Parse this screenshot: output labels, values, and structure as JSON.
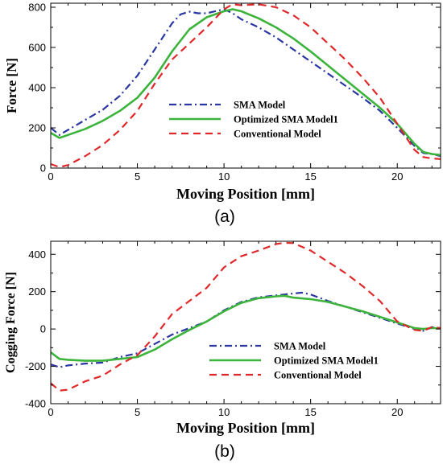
{
  "chart_data": [
    {
      "type": "line",
      "caption": "(a)",
      "xlabel": "Moving Position [mm]",
      "ylabel": "Force [N]",
      "xlim": [
        0,
        22.5
      ],
      "ylim": [
        0,
        820
      ],
      "xticks": [
        0,
        5,
        10,
        15,
        20
      ],
      "yticks": [
        0,
        200,
        400,
        600,
        800
      ],
      "grid": false,
      "legend_position": "center-right",
      "series": [
        {
          "name": "SMA Model",
          "color": "#2a37a0",
          "style": "dashdot",
          "x": [
            0,
            0.5,
            1,
            2,
            3,
            4,
            5,
            6,
            7,
            7.5,
            8,
            8.5,
            9,
            10,
            10.5,
            11,
            12,
            13,
            14,
            15,
            16,
            17,
            18,
            19,
            20,
            21,
            21.5,
            22,
            22.5
          ],
          "y": [
            200,
            165,
            190,
            240,
            290,
            360,
            460,
            590,
            720,
            765,
            778,
            770,
            770,
            790,
            770,
            740,
            700,
            650,
            590,
            530,
            470,
            410,
            350,
            285,
            200,
            110,
            75,
            70,
            60
          ]
        },
        {
          "name": "Optimized SMA Model1",
          "color": "#3cb43c",
          "style": "solid",
          "x": [
            0,
            0.5,
            1,
            2,
            3,
            4,
            5,
            6,
            7,
            8,
            9,
            10,
            10.5,
            11,
            12,
            13,
            14,
            15,
            16,
            17,
            18,
            19,
            20,
            21,
            21.5,
            22,
            22.5
          ],
          "y": [
            175,
            150,
            165,
            195,
            235,
            285,
            350,
            450,
            580,
            690,
            750,
            780,
            790,
            780,
            745,
            700,
            645,
            580,
            510,
            440,
            370,
            300,
            220,
            120,
            80,
            70,
            65
          ]
        },
        {
          "name": "Conventional Model",
          "color": "#e0282a",
          "style": "dashed",
          "x": [
            0,
            0.5,
            1,
            2,
            3,
            4,
            5,
            6,
            7,
            8,
            9,
            10,
            10.5,
            11,
            12,
            13,
            14,
            15,
            16,
            17,
            18,
            19,
            20,
            21,
            21.5,
            22,
            22.5
          ],
          "y": [
            20,
            5,
            15,
            60,
            115,
            190,
            285,
            420,
            540,
            620,
            700,
            790,
            815,
            810,
            815,
            800,
            760,
            700,
            620,
            540,
            450,
            350,
            220,
            90,
            55,
            48,
            45
          ]
        }
      ]
    },
    {
      "type": "line",
      "caption": "(b)",
      "xlabel": "Moving Position [mm]",
      "ylabel": "Cogging Force [N]",
      "xlim": [
        0,
        22.5
      ],
      "ylim": [
        -400,
        470
      ],
      "xticks": [
        0,
        5,
        10,
        15,
        20
      ],
      "yticks": [
        -400,
        -200,
        0,
        200,
        400
      ],
      "grid": false,
      "legend_position": "bottom-right",
      "series": [
        {
          "name": "SMA Model",
          "color": "#2a37a0",
          "style": "dashdot",
          "x": [
            0,
            0.5,
            1,
            2,
            3,
            4,
            5,
            6,
            7,
            8,
            9,
            10,
            11,
            12,
            13,
            14,
            14.5,
            15,
            16,
            17,
            18,
            19,
            20,
            21,
            21.5,
            22,
            22.5
          ],
          "y": [
            -190,
            -205,
            -195,
            -185,
            -180,
            -150,
            -130,
            -80,
            -30,
            5,
            40,
            100,
            145,
            170,
            180,
            190,
            195,
            185,
            150,
            120,
            90,
            60,
            30,
            0,
            -10,
            10,
            5
          ]
        },
        {
          "name": "Optimized SMA Model1",
          "color": "#3cb43c",
          "style": "solid",
          "x": [
            0,
            0.5,
            1,
            2,
            3,
            4,
            5,
            6,
            7,
            8,
            9,
            10,
            11,
            12,
            13,
            13.5,
            14,
            15,
            16,
            17,
            18,
            19,
            20,
            21,
            21.5,
            22,
            22.5
          ],
          "y": [
            -125,
            -160,
            -165,
            -170,
            -170,
            -160,
            -150,
            -110,
            -55,
            -5,
            40,
            95,
            140,
            165,
            175,
            178,
            168,
            160,
            145,
            120,
            95,
            65,
            35,
            5,
            0,
            5,
            5
          ]
        },
        {
          "name": "Conventional Model",
          "color": "#e0282a",
          "style": "dashed",
          "x": [
            0,
            0.5,
            1,
            2,
            3,
            4,
            5,
            6,
            7,
            8,
            9,
            10,
            11,
            12,
            13,
            13.5,
            14,
            15,
            16,
            17,
            18,
            19,
            20,
            21,
            21.5,
            22,
            22.5
          ],
          "y": [
            -290,
            -330,
            -325,
            -280,
            -250,
            -190,
            -140,
            -40,
            80,
            150,
            220,
            330,
            390,
            420,
            455,
            462,
            460,
            420,
            360,
            300,
            230,
            150,
            40,
            -5,
            -10,
            10,
            5
          ]
        }
      ]
    }
  ]
}
